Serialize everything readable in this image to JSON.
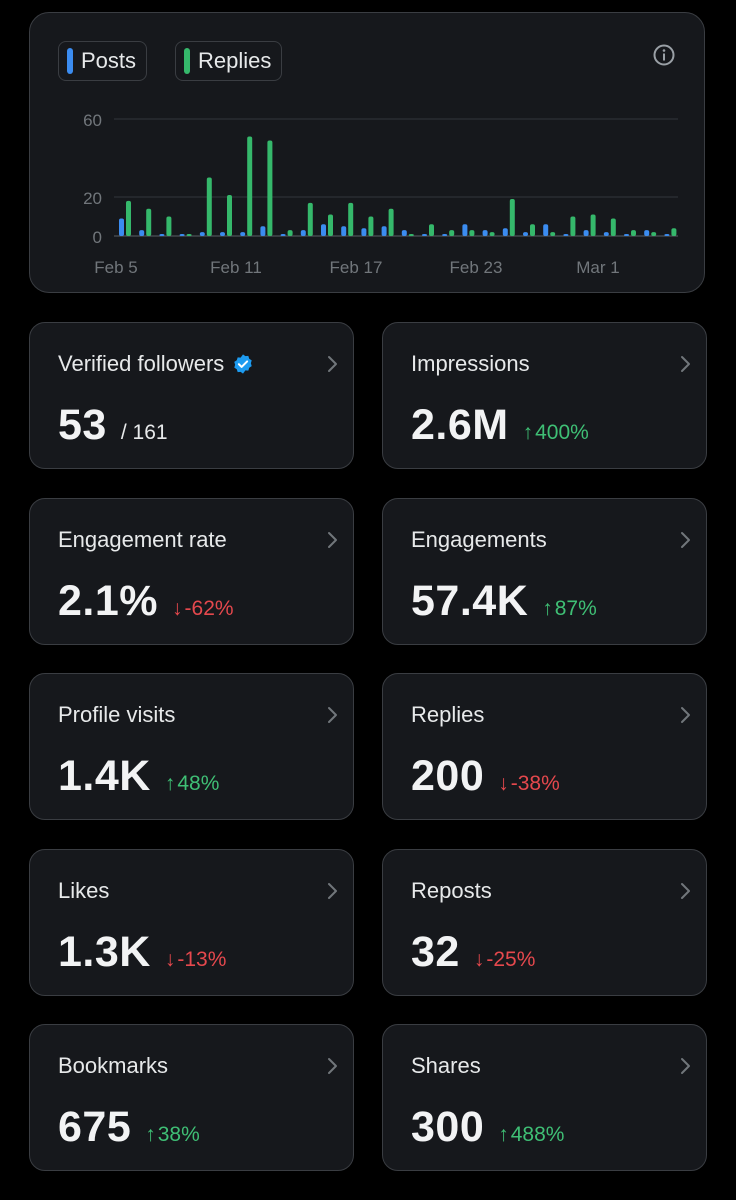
{
  "legend": {
    "posts_label": "Posts",
    "replies_label": "Replies"
  },
  "colors": {
    "posts": "#3b8cf0",
    "replies": "#35b86b",
    "up": "#3fbf75",
    "down": "#e5484d",
    "verified": "#1d9bf0"
  },
  "chart_data": {
    "type": "bar",
    "x_tick_labels": [
      "Feb 5",
      "Feb 11",
      "Feb 17",
      "Feb 23",
      "Mar 1"
    ],
    "y_tick_labels": [
      "60",
      "20",
      "0"
    ],
    "y_ticks": [
      60,
      20,
      0
    ],
    "ylim": [
      0,
      60
    ],
    "categories": [
      "Feb 5",
      "Feb 6",
      "Feb 7",
      "Feb 8",
      "Feb 9",
      "Feb 10",
      "Feb 11",
      "Feb 12",
      "Feb 13",
      "Feb 14",
      "Feb 15",
      "Feb 16",
      "Feb 17",
      "Feb 18",
      "Feb 19",
      "Feb 20",
      "Feb 21",
      "Feb 22",
      "Feb 23",
      "Feb 24",
      "Feb 25",
      "Feb 26",
      "Feb 27",
      "Feb 28",
      "Mar 1",
      "Mar 2",
      "Mar 3",
      "Mar 4"
    ],
    "series": [
      {
        "name": "Posts",
        "values": [
          9,
          3,
          1,
          0,
          2,
          2,
          2,
          5,
          1,
          3,
          6,
          5,
          4,
          5,
          3,
          1,
          1,
          6,
          3,
          4,
          2,
          6,
          1,
          3,
          2,
          0,
          3,
          1
        ]
      },
      {
        "name": "Replies",
        "values": [
          18,
          14,
          10,
          0,
          30,
          21,
          51,
          49,
          3,
          17,
          11,
          17,
          10,
          14,
          0,
          6,
          3,
          3,
          2,
          19,
          6,
          2,
          10,
          11,
          9,
          3,
          2,
          4
        ]
      }
    ]
  },
  "stats": [
    {
      "label": "Verified followers",
      "value": "53",
      "sub": "/ 161",
      "verified": true
    },
    {
      "label": "Impressions",
      "value": "2.6M",
      "arrow": "↑",
      "change": "400%",
      "direction": "up"
    },
    {
      "label": "Engagement rate",
      "value": "2.1%",
      "arrow": "↓",
      "change": "-62%",
      "direction": "down"
    },
    {
      "label": "Engagements",
      "value": "57.4K",
      "arrow": "↑",
      "change": "87%",
      "direction": "up"
    },
    {
      "label": "Profile visits",
      "value": "1.4K",
      "arrow": "↑",
      "change": "48%",
      "direction": "up"
    },
    {
      "label": "Replies",
      "value": "200",
      "arrow": "↓",
      "change": "-38%",
      "direction": "down"
    },
    {
      "label": "Likes",
      "value": "1.3K",
      "arrow": "↓",
      "change": "-13%",
      "direction": "down"
    },
    {
      "label": "Reposts",
      "value": "32",
      "arrow": "↓",
      "change": "-25%",
      "direction": "down"
    },
    {
      "label": "Bookmarks",
      "value": "675",
      "arrow": "↑",
      "change": "38%",
      "direction": "up"
    },
    {
      "label": "Shares",
      "value": "300",
      "arrow": "↑",
      "change": "488%",
      "direction": "up"
    }
  ]
}
